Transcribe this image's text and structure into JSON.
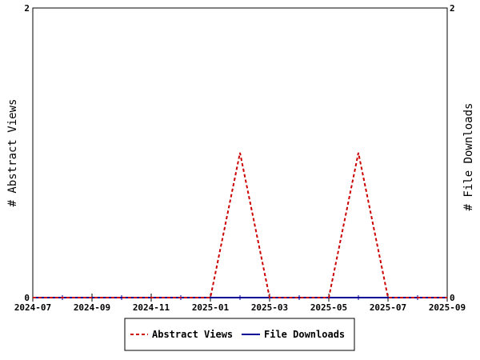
{
  "chart_data": {
    "type": "line",
    "x": [
      "2024-07",
      "2024-08",
      "2024-09",
      "2024-10",
      "2024-11",
      "2024-12",
      "2025-01",
      "2025-02",
      "2025-03",
      "2025-04",
      "2025-05",
      "2025-06",
      "2025-07",
      "2025-08",
      "2025-09"
    ],
    "x_tick_labels": [
      "2024-07",
      "2024-09",
      "2024-11",
      "2025-01",
      "2025-03",
      "2025-05",
      "2025-07",
      "2025-09"
    ],
    "series": [
      {
        "name": "Abstract Views",
        "axis": "left",
        "color": "#cc0000",
        "style": "dashed",
        "values": [
          0,
          0,
          0,
          0,
          0,
          0,
          0,
          1,
          0,
          0,
          0,
          1,
          0,
          0,
          0
        ]
      },
      {
        "name": "File Downloads",
        "axis": "right",
        "color": "#000099",
        "style": "solid",
        "values": [
          0,
          0,
          0,
          0,
          0,
          0,
          0,
          0,
          0,
          0,
          0,
          0,
          0,
          0,
          0
        ]
      }
    ],
    "ylabel_left": "# Abstract Views",
    "ylabel_right": "# File Downloads",
    "ylim_left": [
      0,
      2
    ],
    "ylim_right": [
      0,
      2
    ],
    "y_tick_labels_left": [
      "0",
      "2"
    ],
    "y_tick_labels_right": [
      "0",
      "2"
    ],
    "grid": false,
    "legend_position": "bottom"
  }
}
